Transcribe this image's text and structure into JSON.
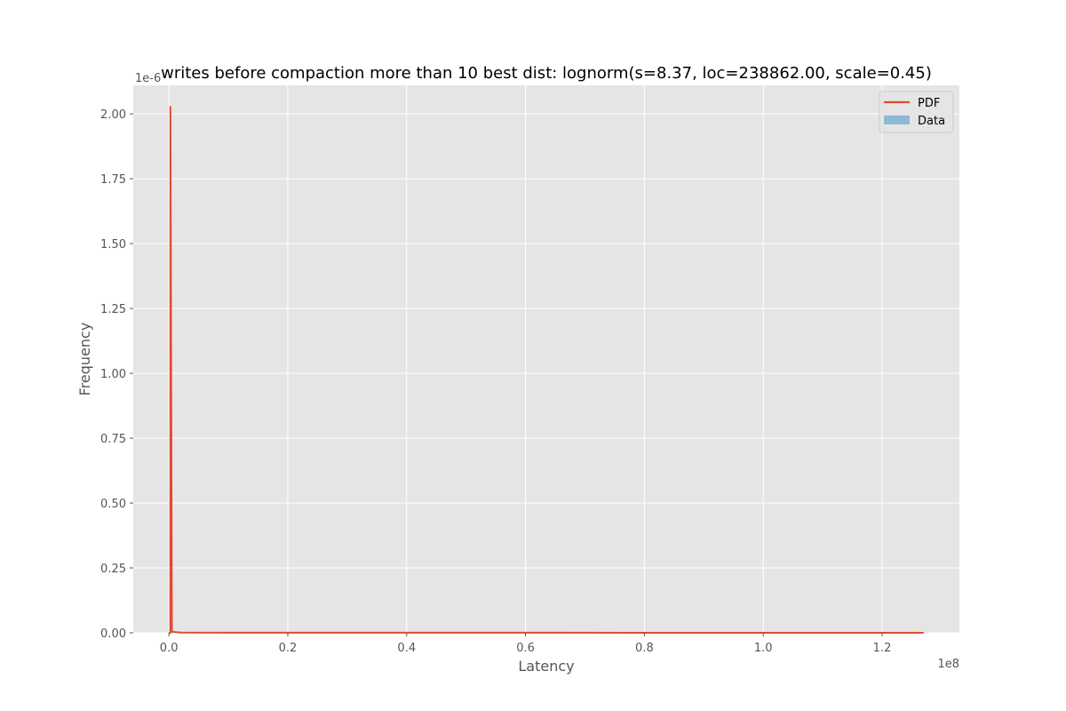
{
  "chart_data": {
    "type": "line",
    "title": "writes before compaction more than 10 best dist: lognorm(s=8.37, loc=238862.00, scale=0.45)",
    "xlabel": "Latency",
    "ylabel": "Frequency",
    "x_offset_label": "1e8",
    "y_offset_label": "1e-6",
    "x_scale": 100000000,
    "y_scale": 1e-06,
    "xlim": [
      -0.06,
      1.33
    ],
    "ylim": [
      0,
      2.11
    ],
    "x_ticks": [
      0.0,
      0.2,
      0.4,
      0.6,
      0.8,
      1.0,
      1.2
    ],
    "x_tick_labels": [
      "0.0",
      "0.2",
      "0.4",
      "0.6",
      "0.8",
      "1.0",
      "1.2"
    ],
    "y_ticks": [
      0.0,
      0.25,
      0.5,
      0.75,
      1.0,
      1.25,
      1.5,
      1.75,
      2.0
    ],
    "y_tick_labels": [
      "0.00",
      "0.25",
      "0.50",
      "0.75",
      "1.00",
      "1.25",
      "1.50",
      "1.75",
      "2.00"
    ],
    "grid": true,
    "legend_position": "top-right",
    "series": [
      {
        "name": "PDF",
        "type": "line",
        "color": "#e24a33",
        "x": [
          0.0,
          0.0024,
          0.0025,
          0.005,
          0.02,
          0.1,
          0.4,
          0.8,
          1.2,
          1.27
        ],
        "y": [
          0.0,
          0.0,
          2.03,
          0.004,
          0.001,
          0.0005,
          0.0003,
          0.0002,
          0.0001,
          0.0001
        ]
      },
      {
        "name": "Data",
        "type": "histogram",
        "color": "#8eb9d3",
        "bins": [],
        "values": []
      }
    ]
  }
}
